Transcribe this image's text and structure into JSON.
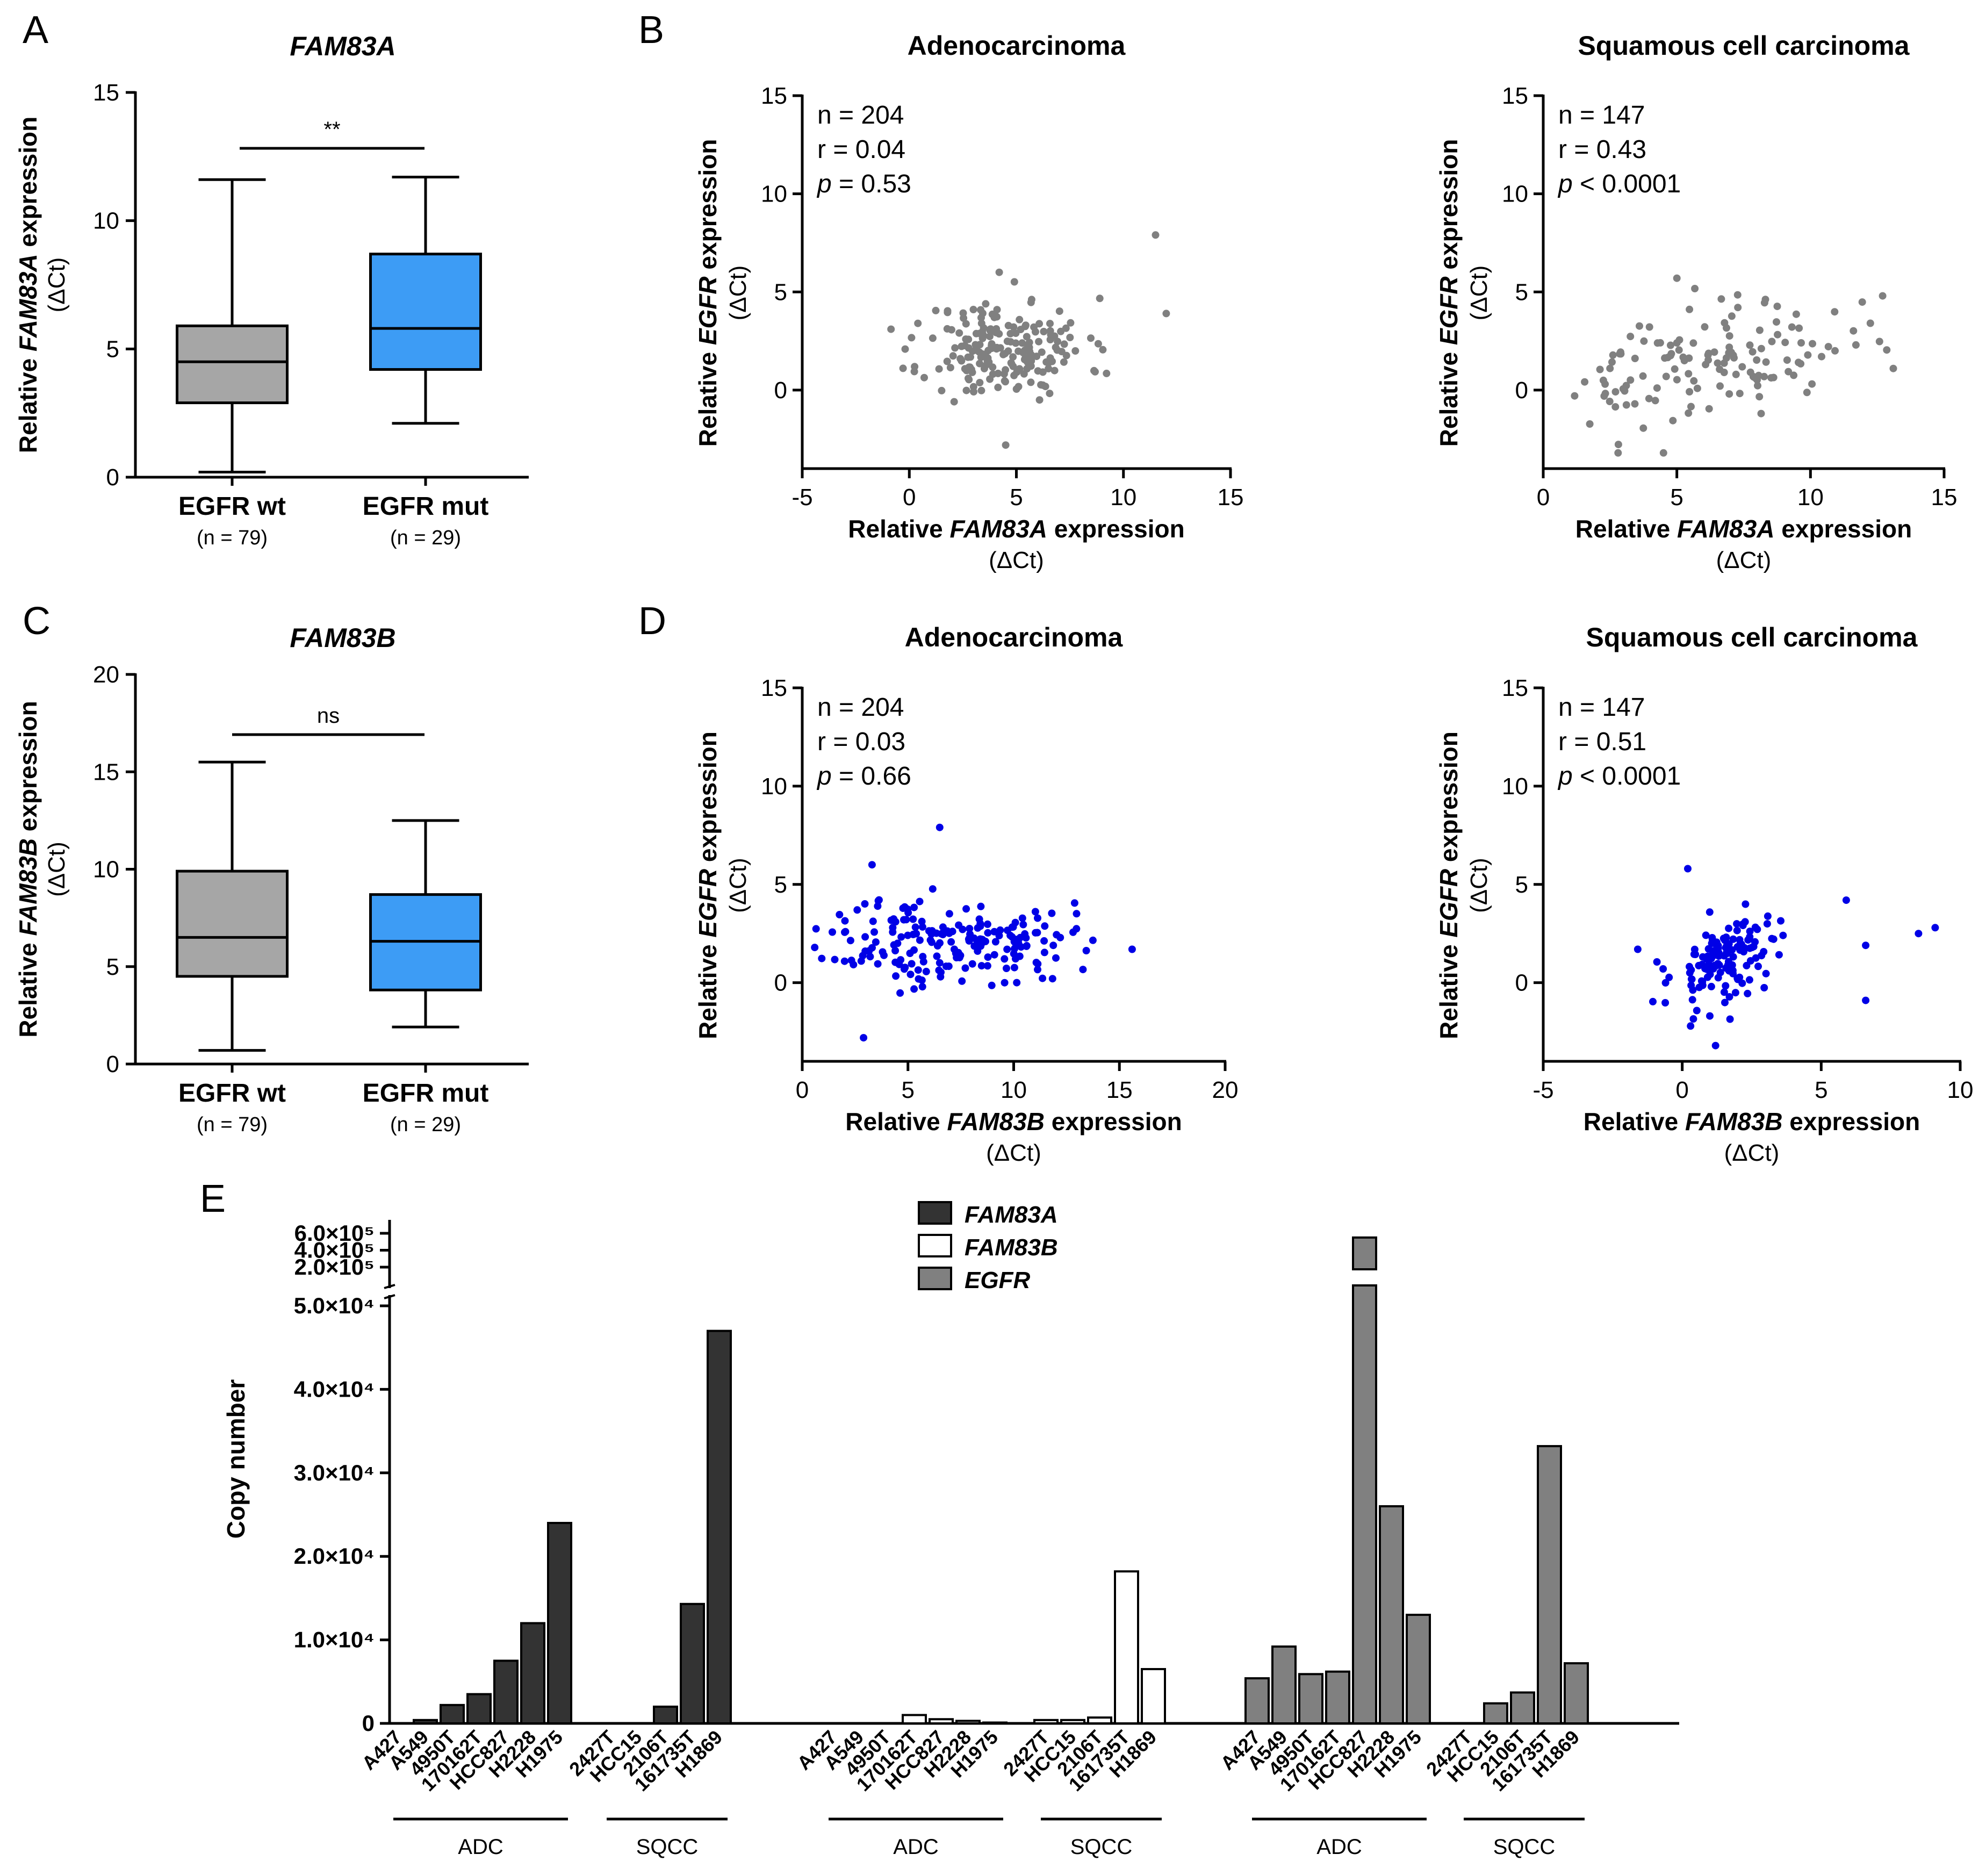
{
  "panels": {
    "A": "A",
    "B": "B",
    "C": "C",
    "D": "D",
    "E": "E"
  },
  "colors": {
    "box_wt": "#a6a6a6",
    "box_mut": "#3d9cf5",
    "scatter_grey": "#808080",
    "scatter_blue": "#0000e6",
    "bar_fam83a": "#333333",
    "bar_fam83b": "#ffffff",
    "bar_egfr": "#808080"
  },
  "chart_data": [
    {
      "id": "A",
      "type": "box",
      "title": "FAM83A",
      "ylabel_pre": "Relative ",
      "ylabel_gene": "FAM83A",
      "ylabel_post": " expression",
      "ylabel_sub": "(ΔCt)",
      "ylim": [
        0,
        15
      ],
      "yticks": [
        0,
        5,
        10,
        15
      ],
      "significance": "**",
      "groups": [
        {
          "label": "EGFR wt",
          "n_label": "(n = 79)",
          "min": 0.2,
          "q1": 2.9,
          "median": 4.5,
          "q3": 5.9,
          "max": 11.6
        },
        {
          "label": "EGFR mut",
          "n_label": "(n = 29)",
          "min": 2.1,
          "q1": 4.2,
          "median": 5.8,
          "q3": 8.7,
          "max": 11.7
        }
      ]
    },
    {
      "id": "C",
      "type": "box",
      "title": "FAM83B",
      "ylabel_pre": "Relative ",
      "ylabel_gene": "FAM83B",
      "ylabel_post": " expression",
      "ylabel_sub": "(ΔCt)",
      "ylim": [
        0,
        20
      ],
      "yticks": [
        0,
        5,
        10,
        15,
        20
      ],
      "significance": "ns",
      "groups": [
        {
          "label": "EGFR wt",
          "n_label": "(n = 79)",
          "min": 0.7,
          "q1": 4.5,
          "median": 6.5,
          "q3": 9.9,
          "max": 15.5
        },
        {
          "label": "EGFR mut",
          "n_label": "(n = 29)",
          "min": 1.9,
          "q1": 3.8,
          "median": 6.3,
          "q3": 8.7,
          "max": 12.5
        }
      ]
    },
    {
      "id": "B1",
      "type": "scatter",
      "title": "Adenocarcinoma",
      "xlabel_pre": "Relative ",
      "xlabel_gene": "FAM83A",
      "xlabel_post": " expression",
      "xlabel_sub": "(ΔCt)",
      "ylabel_pre": "Relative ",
      "ylabel_gene": "EGFR",
      "ylabel_post": " expression",
      "ylabel_sub": "(ΔCt)",
      "xlim": [
        -5,
        15
      ],
      "xticks": [
        -5,
        0,
        5,
        10,
        15
      ],
      "ylim": [
        -4,
        15
      ],
      "yticks": [
        0,
        5,
        10,
        15
      ],
      "n": "n = 204",
      "r": "r  = 0.04",
      "p_sym": "p",
      "p_val": " = 0.53",
      "n_points": 204,
      "x_center": 4.5,
      "x_sd": 1.9,
      "y_center": 2.1,
      "y_sd": 1.25,
      "slope": 0.02,
      "seed": 11,
      "outliers": [
        [
          11.5,
          7.9
        ],
        [
          4.2,
          6.0
        ],
        [
          4.5,
          -2.8
        ],
        [
          12.0,
          3.9
        ],
        [
          0.4,
          3.4
        ]
      ]
    },
    {
      "id": "B2",
      "type": "scatter",
      "title": "Squamous cell carcinoma",
      "xlabel_pre": "Relative ",
      "xlabel_gene": "FAM83A",
      "xlabel_post": " expression",
      "xlabel_sub": "(ΔCt)",
      "ylabel_pre": "Relative ",
      "ylabel_gene": "EGFR",
      "ylabel_post": " expression",
      "ylabel_sub": "(ΔCt)",
      "xlim": [
        0,
        15
      ],
      "xticks": [
        0,
        5,
        10,
        15
      ],
      "ylim": [
        -4,
        15
      ],
      "yticks": [
        0,
        5,
        10,
        15
      ],
      "n": "n = 147",
      "r": "r  = 0.43",
      "p_sym": "p",
      "p_val": " < 0.0001",
      "n_points": 147,
      "x_center": 5.8,
      "x_sd": 2.8,
      "y_center": 1.2,
      "y_sd": 1.3,
      "slope": 0.22,
      "seed": 23,
      "outliers": [
        [
          5.0,
          5.7
        ],
        [
          12.7,
          4.8
        ],
        [
          2.8,
          -3.2
        ],
        [
          4.5,
          -3.2
        ],
        [
          13.1,
          1.1
        ],
        [
          11.7,
          2.3
        ]
      ]
    },
    {
      "id": "D1",
      "type": "scatter",
      "title": "Adenocarcinoma",
      "xlabel_pre": "Relative ",
      "xlabel_gene": "FAM83B",
      "xlabel_post": " expression",
      "xlabel_sub": "(ΔCt)",
      "ylabel_pre": "Relative ",
      "ylabel_gene": "EGFR",
      "ylabel_post": " expression",
      "ylabel_sub": "(ΔCt)",
      "xlim": [
        0,
        20
      ],
      "xticks": [
        0,
        5,
        10,
        15,
        20
      ],
      "ylim": [
        -4,
        15
      ],
      "yticks": [
        0,
        5,
        10,
        15
      ],
      "n": "n = 204",
      "r": "r  = 0.03",
      "p_sym": "p",
      "p_val": " = 0.66",
      "n_points": 204,
      "x_center": 6.8,
      "x_sd": 2.9,
      "y_center": 2.1,
      "y_sd": 1.1,
      "slope": 0.0,
      "seed": 37,
      "outliers": [
        [
          6.5,
          7.9
        ],
        [
          3.3,
          6.0
        ],
        [
          2.9,
          -2.8
        ],
        [
          15.6,
          1.7
        ],
        [
          0.1,
          0.4
        ]
      ]
    },
    {
      "id": "D2",
      "type": "scatter",
      "title": "Squamous cell carcinoma",
      "xlabel_pre": "Relative ",
      "xlabel_gene": "FAM83B",
      "xlabel_post": " expression",
      "xlabel_sub": "(ΔCt)",
      "ylabel_pre": "Relative ",
      "ylabel_gene": "EGFR",
      "ylabel_post": " expression",
      "ylabel_sub": "(ΔCt)",
      "xlim": [
        -5,
        10
      ],
      "xticks": [
        -5,
        0,
        5,
        10
      ],
      "ylim": [
        -4,
        15
      ],
      "yticks": [
        0,
        5,
        10,
        15
      ],
      "n": "n = 147",
      "r": "r  = 0.51",
      "p_sym": "p",
      "p_val": " < 0.0001",
      "n_points": 147,
      "x_center": 1.6,
      "x_sd": 1.0,
      "y_center": 1.2,
      "y_sd": 1.1,
      "slope": 0.6,
      "seed": 53,
      "outliers": [
        [
          9.1,
          2.8
        ],
        [
          8.5,
          2.5
        ],
        [
          6.6,
          1.9
        ],
        [
          6.6,
          -0.9
        ],
        [
          5.9,
          4.2
        ],
        [
          -1.6,
          1.7
        ],
        [
          0.2,
          5.8
        ],
        [
          1.2,
          -3.2
        ]
      ]
    },
    {
      "id": "E",
      "type": "bar",
      "ylabel": "Copy number",
      "lower_ylim": [
        0,
        50000
      ],
      "lower_yticks": [
        0,
        10000,
        20000,
        30000,
        40000,
        50000
      ],
      "lower_yticklabels": [
        "0",
        "1.0×10⁴",
        "2.0×10⁴",
        "3.0×10⁴",
        "4.0×10⁴",
        "5.0×10⁴"
      ],
      "upper_ylim": [
        200000,
        600000
      ],
      "upper_yticks": [
        200000,
        400000,
        600000
      ],
      "upper_yticklabels": [
        "2.0×10⁵",
        "4.0×10⁵",
        "6.0×10⁵"
      ],
      "legend": [
        {
          "name": "FAM83A",
          "color": "#333333"
        },
        {
          "name": "FAM83B",
          "color": "#ffffff"
        },
        {
          "name": "EGFR",
          "color": "#808080"
        }
      ],
      "series": [
        {
          "name": "FAM83A",
          "color": "#333333",
          "groups": [
            {
              "label": "ADC",
              "categories": [
                "A427",
                "A549",
                "4950T",
                "170162T",
                "HCC827",
                "H2228",
                "H1975"
              ],
              "values": [
                0,
                400,
                2200,
                3500,
                7500,
                12000,
                24000
              ]
            },
            {
              "label": "SQCC",
              "categories": [
                "2427T",
                "HCC15",
                "2106T",
                "161735T",
                "H1869"
              ],
              "values": [
                0,
                0,
                2000,
                14300,
                47000
              ]
            }
          ]
        },
        {
          "name": "FAM83B",
          "color": "#ffffff",
          "groups": [
            {
              "label": "ADC",
              "categories": [
                "A427",
                "A549",
                "4950T",
                "170162T",
                "HCC827",
                "H2228",
                "H1975"
              ],
              "values": [
                0,
                0,
                0,
                1000,
                500,
                300,
                100
              ]
            },
            {
              "label": "SQCC",
              "categories": [
                "2427T",
                "HCC15",
                "2106T",
                "161735T",
                "H1869"
              ],
              "values": [
                400,
                400,
                700,
                18200,
                6500
              ]
            }
          ]
        },
        {
          "name": "EGFR",
          "color": "#808080",
          "groups": [
            {
              "label": "ADC",
              "categories": [
                "A427",
                "A549",
                "4950T",
                "170162T",
                "HCC827",
                "H2228",
                "H1975"
              ],
              "values": [
                5400,
                9200,
                5900,
                6200,
                550000,
                26000,
                13000
              ]
            },
            {
              "label": "SQCC",
              "categories": [
                "2427T",
                "HCC15",
                "2106T",
                "161735T",
                "H1869"
              ],
              "values": [
                0,
                2400,
                3700,
                33200,
                7200
              ]
            }
          ]
        }
      ]
    }
  ]
}
